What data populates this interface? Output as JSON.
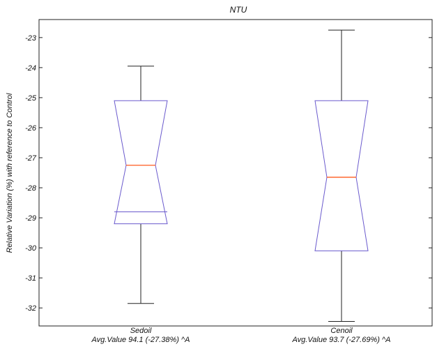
{
  "chart_data": {
    "type": "box",
    "title": "NTU",
    "xlabel": "",
    "ylabel": "Relative Variation (%) with reference to Control",
    "ylim": [
      -32.6,
      -22.4
    ],
    "yticks": [
      -32,
      -31,
      -30,
      -29,
      -28,
      -27,
      -26,
      -25,
      -24,
      -23
    ],
    "notched": true,
    "grid": false,
    "categories": [
      "Sedoil",
      "Cenoil"
    ],
    "sublabels": [
      "Avg.Value 94.1 (-27.38%) ^A",
      "Avg.Value 93.7 (-27.69%) ^A"
    ],
    "boxes": [
      {
        "label": "Sedoil",
        "whisker_low": -31.85,
        "q1": -28.8,
        "median": -27.25,
        "q3": -25.1,
        "whisker_high": -23.95,
        "notch_low": -29.2,
        "notch_high": -25.1
      },
      {
        "label": "Cenoil",
        "whisker_low": -32.45,
        "q1": -30.1,
        "median": -27.65,
        "q3": -25.1,
        "whisker_high": -22.75,
        "notch_low": -30.1,
        "notch_high": -25.1
      }
    ],
    "colors": {
      "box": "#6a5acd",
      "median": "#ff5a1e",
      "whisker": "#222222",
      "frame": "#222222"
    }
  }
}
